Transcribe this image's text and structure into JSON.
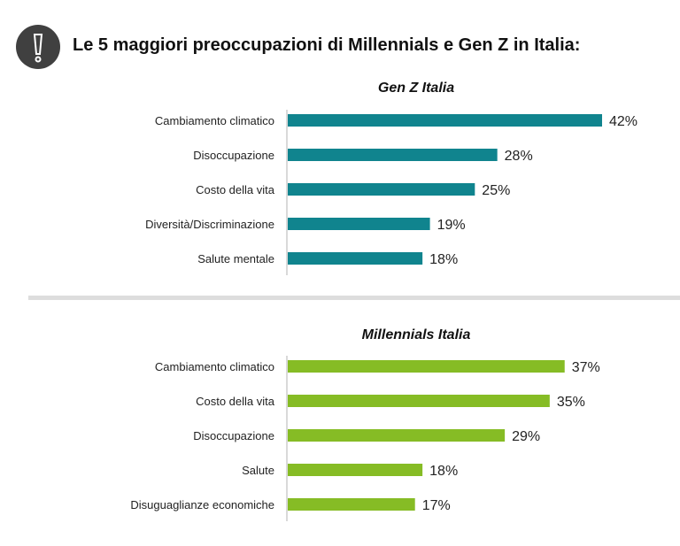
{
  "header": {
    "title": "Le 5 maggiori preoccupazioni di Millennials e Gen Z in Italia:",
    "icon": "exclamation-icon"
  },
  "chart_data": [
    {
      "type": "bar",
      "orientation": "horizontal",
      "title": "Gen Z Italia",
      "color": "#10848E",
      "categories": [
        "Cambiamento climatico",
        "Disoccupazione",
        "Costo della vita",
        "Diversità/Discriminazione",
        "Salute mentale"
      ],
      "values": [
        42,
        28,
        25,
        19,
        18
      ],
      "labels": [
        "42%",
        "28%",
        "25%",
        "19%",
        "18%"
      ],
      "xlim": [
        0,
        42
      ]
    },
    {
      "type": "bar",
      "orientation": "horizontal",
      "title": "Millennials Italia",
      "color": "#86BC25",
      "categories": [
        "Cambiamento climatico",
        "Costo della vita",
        "Disoccupazione",
        "Salute",
        "Disuguaglianze economiche"
      ],
      "values": [
        37,
        35,
        29,
        18,
        17
      ],
      "labels": [
        "37%",
        "35%",
        "29%",
        "18%",
        "17%"
      ],
      "xlim": [
        0,
        42
      ]
    }
  ]
}
